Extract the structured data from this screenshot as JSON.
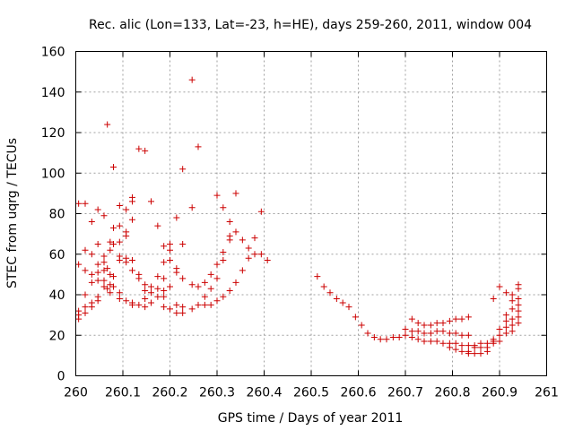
{
  "chart_data": {
    "type": "scatter",
    "title": "Rec. alic (Lon=133, Lat=-23, h=HE), days 259-260, 2011, window 004",
    "xlabel": "GPS time / Days of year 2011",
    "ylabel": "STEC from uqrg / TECUs",
    "xlim": [
      260,
      261
    ],
    "ylim": [
      0,
      160
    ],
    "x_ticks": [
      260,
      260.1,
      260.2,
      260.3,
      260.4,
      260.5,
      260.6,
      260.7,
      260.8,
      260.9,
      261
    ],
    "x_tick_labels": [
      "260",
      "260.1",
      "260.2",
      "260.3",
      "260.4",
      "260.5",
      "260.6",
      "260.7",
      "260.8",
      "260.9",
      "261"
    ],
    "y_ticks": [
      0,
      20,
      40,
      60,
      80,
      100,
      120,
      140,
      160
    ],
    "y_tick_labels": [
      "0",
      "20",
      "40",
      "60",
      "80",
      "100",
      "120",
      "140",
      "160"
    ],
    "grid": true,
    "marker": "+",
    "color": "#cc0000",
    "series": [
      {
        "points": [
          [
            260.006,
            85
          ],
          [
            260.006,
            55
          ],
          [
            260.006,
            32
          ],
          [
            260.006,
            30
          ],
          [
            260.006,
            28
          ],
          [
            260.02,
            85
          ],
          [
            260.02,
            62
          ],
          [
            260.02,
            52
          ],
          [
            260.02,
            40
          ],
          [
            260.02,
            34
          ],
          [
            260.02,
            31
          ],
          [
            260.034,
            76
          ],
          [
            260.034,
            60
          ],
          [
            260.034,
            50
          ],
          [
            260.034,
            46
          ],
          [
            260.034,
            36
          ],
          [
            260.034,
            34
          ],
          [
            260.047,
            82
          ],
          [
            260.047,
            65
          ],
          [
            260.047,
            55
          ],
          [
            260.047,
            51
          ],
          [
            260.047,
            47
          ],
          [
            260.047,
            39
          ],
          [
            260.047,
            37
          ],
          [
            260.06,
            79
          ],
          [
            260.06,
            59
          ],
          [
            260.06,
            56
          ],
          [
            260.06,
            52
          ],
          [
            260.06,
            47
          ],
          [
            260.06,
            44
          ],
          [
            260.067,
            124
          ],
          [
            260.067,
            53
          ],
          [
            260.067,
            43
          ],
          [
            260.073,
            66
          ],
          [
            260.073,
            62
          ],
          [
            260.073,
            50
          ],
          [
            260.073,
            45
          ],
          [
            260.073,
            41
          ],
          [
            260.08,
            103
          ],
          [
            260.08,
            73
          ],
          [
            260.08,
            65
          ],
          [
            260.08,
            49
          ],
          [
            260.08,
            44
          ],
          [
            260.093,
            84
          ],
          [
            260.093,
            74
          ],
          [
            260.093,
            66
          ],
          [
            260.093,
            59
          ],
          [
            260.093,
            57
          ],
          [
            260.093,
            41
          ],
          [
            260.093,
            38
          ],
          [
            260.107,
            82
          ],
          [
            260.107,
            71
          ],
          [
            260.107,
            69
          ],
          [
            260.107,
            58
          ],
          [
            260.107,
            56
          ],
          [
            260.107,
            37
          ],
          [
            260.12,
            88
          ],
          [
            260.12,
            86
          ],
          [
            260.12,
            77
          ],
          [
            260.12,
            57
          ],
          [
            260.12,
            52
          ],
          [
            260.12,
            36
          ],
          [
            260.12,
            35
          ],
          [
            260.134,
            112
          ],
          [
            260.134,
            50
          ],
          [
            260.134,
            48
          ],
          [
            260.134,
            35
          ],
          [
            260.147,
            111
          ],
          [
            260.147,
            45
          ],
          [
            260.147,
            42
          ],
          [
            260.147,
            38
          ],
          [
            260.147,
            34
          ],
          [
            260.16,
            86
          ],
          [
            260.16,
            44
          ],
          [
            260.16,
            41
          ],
          [
            260.16,
            36
          ],
          [
            260.174,
            74
          ],
          [
            260.174,
            49
          ],
          [
            260.174,
            43
          ],
          [
            260.174,
            39
          ],
          [
            260.187,
            64
          ],
          [
            260.187,
            56
          ],
          [
            260.187,
            48
          ],
          [
            260.187,
            42
          ],
          [
            260.187,
            39
          ],
          [
            260.187,
            34
          ],
          [
            260.2,
            65
          ],
          [
            260.2,
            62
          ],
          [
            260.2,
            57
          ],
          [
            260.2,
            44
          ],
          [
            260.2,
            33
          ],
          [
            260.214,
            78
          ],
          [
            260.214,
            53
          ],
          [
            260.214,
            51
          ],
          [
            260.214,
            35
          ],
          [
            260.214,
            31
          ],
          [
            260.227,
            102
          ],
          [
            260.227,
            65
          ],
          [
            260.227,
            48
          ],
          [
            260.227,
            34
          ],
          [
            260.227,
            31
          ],
          [
            260.247,
            146
          ],
          [
            260.247,
            83
          ],
          [
            260.247,
            45
          ],
          [
            260.247,
            33
          ],
          [
            260.26,
            113
          ],
          [
            260.26,
            44
          ],
          [
            260.26,
            35
          ],
          [
            260.274,
            46
          ],
          [
            260.274,
            39
          ],
          [
            260.274,
            35
          ],
          [
            260.287,
            50
          ],
          [
            260.287,
            43
          ],
          [
            260.287,
            35
          ],
          [
            260.3,
            89
          ],
          [
            260.3,
            55
          ],
          [
            260.3,
            48
          ],
          [
            260.3,
            37
          ],
          [
            260.313,
            83
          ],
          [
            260.313,
            61
          ],
          [
            260.313,
            57
          ],
          [
            260.313,
            39
          ],
          [
            260.327,
            76
          ],
          [
            260.327,
            69
          ],
          [
            260.327,
            67
          ],
          [
            260.327,
            42
          ],
          [
            260.34,
            90
          ],
          [
            260.34,
            71
          ],
          [
            260.34,
            46
          ],
          [
            260.354,
            67
          ],
          [
            260.354,
            52
          ],
          [
            260.367,
            63
          ],
          [
            260.367,
            58
          ],
          [
            260.38,
            68
          ],
          [
            260.38,
            60
          ],
          [
            260.394,
            81
          ],
          [
            260.394,
            60
          ],
          [
            260.407,
            57
          ],
          [
            260.513,
            49
          ],
          [
            260.527,
            44
          ],
          [
            260.54,
            41
          ],
          [
            260.554,
            38
          ],
          [
            260.567,
            36
          ],
          [
            260.58,
            34
          ],
          [
            260.594,
            29
          ],
          [
            260.607,
            25
          ],
          [
            260.62,
            21
          ],
          [
            260.634,
            19
          ],
          [
            260.647,
            18
          ],
          [
            260.66,
            18
          ],
          [
            260.674,
            19
          ],
          [
            260.687,
            19
          ],
          [
            260.7,
            20
          ],
          [
            260.7,
            23
          ],
          [
            260.714,
            28
          ],
          [
            260.714,
            22
          ],
          [
            260.714,
            19
          ],
          [
            260.727,
            26
          ],
          [
            260.727,
            22
          ],
          [
            260.727,
            18
          ],
          [
            260.74,
            25
          ],
          [
            260.74,
            21
          ],
          [
            260.74,
            17
          ],
          [
            260.754,
            25
          ],
          [
            260.754,
            21
          ],
          [
            260.754,
            17
          ],
          [
            260.767,
            26
          ],
          [
            260.767,
            22
          ],
          [
            260.767,
            17
          ],
          [
            260.78,
            26
          ],
          [
            260.78,
            22
          ],
          [
            260.78,
            16
          ],
          [
            260.794,
            27
          ],
          [
            260.794,
            21
          ],
          [
            260.794,
            16
          ],
          [
            260.794,
            14
          ],
          [
            260.807,
            28
          ],
          [
            260.807,
            21
          ],
          [
            260.807,
            16
          ],
          [
            260.807,
            13
          ],
          [
            260.82,
            28
          ],
          [
            260.82,
            20
          ],
          [
            260.82,
            15
          ],
          [
            260.82,
            12
          ],
          [
            260.834,
            29
          ],
          [
            260.834,
            20
          ],
          [
            260.834,
            15
          ],
          [
            260.834,
            12
          ],
          [
            260.834,
            11
          ],
          [
            260.847,
            15
          ],
          [
            260.847,
            14
          ],
          [
            260.847,
            11
          ],
          [
            260.86,
            16
          ],
          [
            260.86,
            14
          ],
          [
            260.86,
            11
          ],
          [
            260.874,
            16
          ],
          [
            260.874,
            14
          ],
          [
            260.874,
            12
          ],
          [
            260.887,
            38
          ],
          [
            260.887,
            18
          ],
          [
            260.887,
            17
          ],
          [
            260.887,
            16
          ],
          [
            260.9,
            44
          ],
          [
            260.9,
            23
          ],
          [
            260.9,
            20
          ],
          [
            260.9,
            17
          ],
          [
            260.914,
            41
          ],
          [
            260.914,
            30
          ],
          [
            260.914,
            27
          ],
          [
            260.914,
            24
          ],
          [
            260.914,
            21
          ],
          [
            260.927,
            40
          ],
          [
            260.927,
            37
          ],
          [
            260.927,
            33
          ],
          [
            260.927,
            28
          ],
          [
            260.927,
            25
          ],
          [
            260.927,
            22
          ],
          [
            260.94,
            45
          ],
          [
            260.94,
            43
          ],
          [
            260.94,
            38
          ],
          [
            260.94,
            35
          ],
          [
            260.94,
            32
          ],
          [
            260.94,
            29
          ],
          [
            260.94,
            26
          ]
        ]
      }
    ]
  }
}
